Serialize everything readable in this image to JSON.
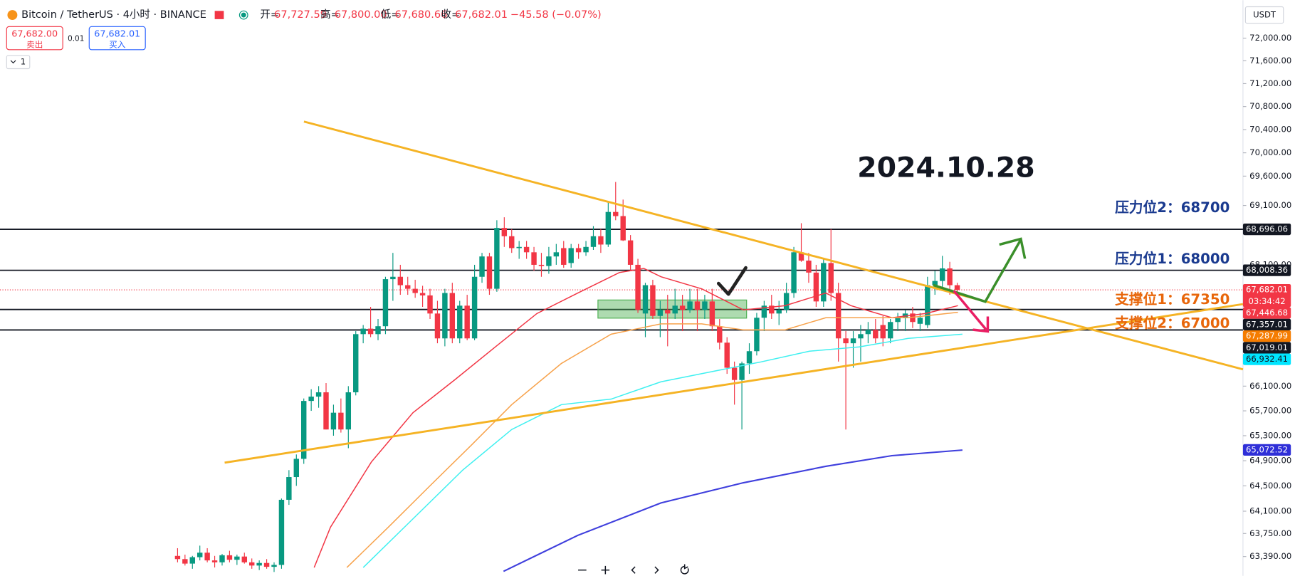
{
  "header": {
    "symbol": "Bitcoin / TetherUS · 4小时 · BINANCE",
    "ohlc": [
      {
        "key": "开=",
        "value": "67,727.59"
      },
      {
        "key": "高=",
        "value": "67,800.00"
      },
      {
        "key": "低=",
        "value": "67,680.66"
      },
      {
        "key": "收=",
        "value": "67,682.01"
      }
    ],
    "change": "−45.58 (−0.07%)",
    "sell": {
      "price": "67,682.00",
      "label": "卖出"
    },
    "spread": "0.01",
    "buy": {
      "price": "67,682.01",
      "label": "买入"
    },
    "indicator_count": "1",
    "currency": "USDT"
  },
  "chart_data": {
    "type": "candlestick",
    "log_scale": true,
    "grid": false,
    "ylim": [
      63090,
      72675
    ],
    "yticks": [
      {
        "value": 72000,
        "label": "72,000.00"
      },
      {
        "value": 71600,
        "label": "71,600.00"
      },
      {
        "value": 71200,
        "label": "71,200.00"
      },
      {
        "value": 70800,
        "label": "70,800.00"
      },
      {
        "value": 70400,
        "label": "70,400.00"
      },
      {
        "value": 70000,
        "label": "70,000.00"
      },
      {
        "value": 69600,
        "label": "69,600.00"
      },
      {
        "value": 69100,
        "label": "69,100.00"
      },
      {
        "value": 68100,
        "label": "68,100.00"
      },
      {
        "value": 66100,
        "label": "66,100.00"
      },
      {
        "value": 65700,
        "label": "65,700.00"
      },
      {
        "value": 65300,
        "label": "65,300.00"
      },
      {
        "value": 64900,
        "label": "64,900.00"
      },
      {
        "value": 64500,
        "label": "64,500.00"
      },
      {
        "value": 64100,
        "label": "64,100.00"
      },
      {
        "value": 63750,
        "label": "63,750.00"
      },
      {
        "value": 63390,
        "label": "63,390.00"
      }
    ],
    "up_color": "#089981",
    "down_color": "#f23645",
    "candles": [
      [
        63400,
        63520,
        63300,
        63350
      ],
      [
        63350,
        63420,
        63250,
        63280
      ],
      [
        63280,
        63400,
        63200,
        63380
      ],
      [
        63380,
        63560,
        63330,
        63450
      ],
      [
        63450,
        63520,
        63300,
        63330
      ],
      [
        63330,
        63400,
        63220,
        63300
      ],
      [
        63300,
        63430,
        63250,
        63410
      ],
      [
        63410,
        63480,
        63300,
        63340
      ],
      [
        63340,
        63420,
        63260,
        63390
      ],
      [
        63390,
        63450,
        63280,
        63300
      ],
      [
        63300,
        63360,
        63200,
        63250
      ],
      [
        63250,
        63330,
        63180,
        63290
      ],
      [
        63290,
        63350,
        63200,
        63230
      ],
      [
        63230,
        63300,
        63150,
        63260
      ],
      [
        63260,
        64300,
        63200,
        64280
      ],
      [
        64280,
        64750,
        64200,
        64640
      ],
      [
        64640,
        65000,
        64500,
        64930
      ],
      [
        64930,
        65900,
        64850,
        65860
      ],
      [
        65860,
        66050,
        65700,
        65930
      ],
      [
        65930,
        66100,
        65750,
        66000
      ],
      [
        66000,
        66150,
        65400,
        65400
      ],
      [
        65400,
        65800,
        65300,
        65670
      ],
      [
        65670,
        65900,
        65350,
        65400
      ],
      [
        65400,
        66100,
        65100,
        66000
      ],
      [
        66000,
        67000,
        65950,
        66950
      ],
      [
        66950,
        67100,
        66800,
        67040
      ],
      [
        67040,
        67400,
        66900,
        66950
      ],
      [
        66950,
        67200,
        66850,
        67080
      ],
      [
        67080,
        67900,
        66950,
        67860
      ],
      [
        67860,
        68300,
        67500,
        67900
      ],
      [
        67900,
        68100,
        67600,
        67760
      ],
      [
        67760,
        67900,
        67600,
        67700
      ],
      [
        67700,
        67850,
        67550,
        67630
      ],
      [
        67630,
        67750,
        67400,
        67590
      ],
      [
        67590,
        67700,
        67200,
        67290
      ],
      [
        67290,
        67500,
        66800,
        66880
      ],
      [
        66880,
        67700,
        66750,
        67630
      ],
      [
        67630,
        67800,
        66800,
        66880
      ],
      [
        66880,
        67500,
        66800,
        67420
      ],
      [
        67420,
        67600,
        66850,
        66880
      ],
      [
        66880,
        68100,
        66850,
        67900
      ],
      [
        67900,
        68300,
        67800,
        68240
      ],
      [
        68240,
        68300,
        67600,
        67700
      ],
      [
        67700,
        68850,
        67650,
        68720
      ],
      [
        68720,
        68900,
        68400,
        68580
      ],
      [
        68580,
        68700,
        68300,
        68380
      ],
      [
        68380,
        68500,
        68200,
        68400
      ],
      [
        68400,
        68500,
        68200,
        68310
      ],
      [
        68310,
        68400,
        68000,
        68100
      ],
      [
        68100,
        68300,
        67900,
        68080
      ],
      [
        68080,
        68400,
        67950,
        68240
      ],
      [
        68240,
        68450,
        68100,
        68310
      ],
      [
        68380,
        68500,
        68050,
        68100
      ],
      [
        68130,
        68450,
        68050,
        68380
      ],
      [
        68380,
        68450,
        68200,
        68310
      ],
      [
        68310,
        68500,
        68250,
        68400
      ],
      [
        68400,
        68750,
        68350,
        68580
      ],
      [
        68580,
        68700,
        68300,
        68440
      ],
      [
        68440,
        69150,
        68400,
        68990
      ],
      [
        68990,
        69500,
        68850,
        68920
      ],
      [
        68920,
        69200,
        68500,
        68510
      ],
      [
        68510,
        68600,
        68000,
        68100
      ],
      [
        68100,
        68200,
        67300,
        67350
      ],
      [
        67290,
        67800,
        66900,
        67760
      ],
      [
        67760,
        67850,
        67200,
        67250
      ],
      [
        67250,
        67500,
        66900,
        67350
      ],
      [
        67350,
        67600,
        66750,
        67290
      ],
      [
        67290,
        67700,
        67200,
        67420
      ],
      [
        67420,
        67600,
        67000,
        67350
      ],
      [
        67350,
        67700,
        67300,
        67490
      ],
      [
        67490,
        67700,
        67000,
        67350
      ],
      [
        67350,
        67600,
        67200,
        67490
      ],
      [
        67490,
        67700,
        67000,
        67080
      ],
      [
        67080,
        67200,
        66700,
        66810
      ],
      [
        66810,
        66900,
        66300,
        66400
      ],
      [
        66400,
        66500,
        65800,
        66200
      ],
      [
        66200,
        66500,
        65400,
        66470
      ],
      [
        66470,
        66800,
        66300,
        66670
      ],
      [
        66670,
        67300,
        66600,
        67220
      ],
      [
        67220,
        67500,
        67000,
        67420
      ],
      [
        67420,
        67600,
        67200,
        67290
      ],
      [
        67290,
        67500,
        67100,
        67350
      ],
      [
        67350,
        67800,
        67300,
        67630
      ],
      [
        67630,
        68400,
        67550,
        68310
      ],
      [
        68310,
        68800,
        68150,
        68170
      ],
      [
        68170,
        68300,
        67800,
        67970
      ],
      [
        67970,
        68100,
        67400,
        67490
      ],
      [
        67490,
        68200,
        67400,
        68130
      ],
      [
        68130,
        68700,
        67500,
        67630
      ],
      [
        67630,
        67800,
        66500,
        66880
      ],
      [
        66880,
        67000,
        65400,
        66800
      ],
      [
        66800,
        67000,
        66400,
        66880
      ],
      [
        66880,
        67100,
        66500,
        66950
      ],
      [
        66950,
        67150,
        66800,
        67020
      ],
      [
        67020,
        67200,
        66800,
        66880
      ],
      [
        67100,
        67250,
        66750,
        66880
      ],
      [
        66880,
        67200,
        66800,
        67150
      ],
      [
        67150,
        67300,
        67000,
        67220
      ],
      [
        67220,
        67350,
        67000,
        67290
      ],
      [
        67290,
        67400,
        67050,
        67150
      ],
      [
        67120,
        67300,
        67000,
        67220
      ],
      [
        67100,
        67900,
        67050,
        67760
      ],
      [
        67760,
        68000,
        67600,
        67830
      ],
      [
        67830,
        68250,
        67700,
        68040
      ],
      [
        68040,
        68150,
        67600,
        67760
      ],
      [
        67760,
        67800,
        67640,
        67682
      ]
    ],
    "lines": [
      {
        "color": "#f23645",
        "points": [
          [
            18.4,
            63220
          ],
          [
            20.6,
            63850
          ],
          [
            26.1,
            64880
          ],
          [
            31.7,
            65670
          ],
          [
            37.3,
            66200
          ],
          [
            42.8,
            66740
          ],
          [
            48.4,
            67290
          ],
          [
            53.9,
            67630
          ],
          [
            59.5,
            67970
          ],
          [
            62.8,
            68040
          ],
          [
            65.1,
            67900
          ],
          [
            70.6,
            67700
          ],
          [
            76.2,
            67350
          ],
          [
            81.8,
            67420
          ],
          [
            87.3,
            67630
          ],
          [
            90.7,
            67420
          ],
          [
            96.2,
            67220
          ],
          [
            100.7,
            67290
          ],
          [
            105.1,
            67420
          ]
        ]
      },
      {
        "color": "#f7a24b",
        "points": [
          [
            22.8,
            63220
          ],
          [
            28.4,
            63850
          ],
          [
            33.9,
            64490
          ],
          [
            39.5,
            65140
          ],
          [
            45.0,
            65800
          ],
          [
            51.7,
            66470
          ],
          [
            58.4,
            66950
          ],
          [
            65.1,
            67120
          ],
          [
            70.6,
            67120
          ],
          [
            76.2,
            67020
          ],
          [
            81.8,
            67020
          ],
          [
            87.3,
            67220
          ],
          [
            92.9,
            67220
          ],
          [
            98.4,
            67220
          ],
          [
            105.1,
            67310
          ]
        ]
      },
      {
        "color": "#3ff0f0",
        "points": [
          [
            25.0,
            63220
          ],
          [
            31.7,
            63980
          ],
          [
            38.4,
            64750
          ],
          [
            45.0,
            65400
          ],
          [
            51.7,
            65800
          ],
          [
            58.4,
            65890
          ],
          [
            65.1,
            66170
          ],
          [
            71.7,
            66330
          ],
          [
            78.4,
            66490
          ],
          [
            85.1,
            66670
          ],
          [
            91.8,
            66740
          ],
          [
            98.4,
            66880
          ],
          [
            105.7,
            66950
          ]
        ]
      },
      {
        "color": "#3f3fdd",
        "points": [
          [
            43.9,
            63160
          ],
          [
            53.9,
            63720
          ],
          [
            65.1,
            64230
          ],
          [
            76.2,
            64550
          ],
          [
            87.3,
            64810
          ],
          [
            96.2,
            64980
          ],
          [
            105.7,
            65070
          ]
        ]
      }
    ],
    "price_tags": [
      {
        "value": 68696.06,
        "label": "68,696.06",
        "color": "#131722",
        "line": "solid"
      },
      {
        "value": 68008.36,
        "label": "68,008.36",
        "color": "#131722",
        "line": "solid"
      },
      {
        "value": 67682.01,
        "label": "67,682.01",
        "color": "#f23645",
        "line": "dotted",
        "countdown": "03:34:42"
      },
      {
        "value": 67446.68,
        "label": "67,446.68",
        "color": "#f23645"
      },
      {
        "value": 67357.01,
        "label": "67,357.01",
        "color": "#131722",
        "line": "solid"
      },
      {
        "value": 67287.99,
        "label": "67,287.99",
        "color": "#f57c00"
      },
      {
        "value": 67019.01,
        "label": "67,019.01",
        "color": "#131722",
        "line": "solid"
      },
      {
        "value": 66932.41,
        "label": "66,932.41",
        "color": "#00e5ff",
        "text_color": "#131722"
      },
      {
        "value": 65072.52,
        "label": "65,072.52",
        "color": "#2f2fd8"
      }
    ],
    "annotations": {
      "date": "2024.10.28",
      "resistance2": "压力位2：68700",
      "resistance1": "压力位1：68000",
      "support1": "支撑位1：67350",
      "support2": "支撑位2：67000"
    }
  }
}
